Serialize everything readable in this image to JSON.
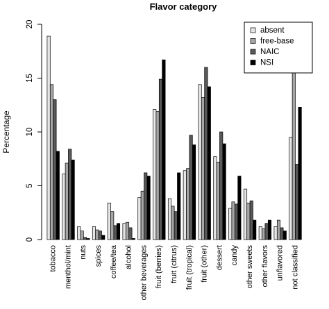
{
  "chart_data": {
    "type": "bar",
    "title": "Flavor category",
    "xlabel": "",
    "ylabel": "Percentage",
    "ylim": [
      0,
      20
    ],
    "yticks": [
      0,
      5,
      10,
      15,
      20
    ],
    "legend_position": "top-right",
    "grid": false,
    "categories": [
      "tobacco",
      "menthol/mint",
      "nuts",
      "spices",
      "coffee/tea",
      "alcohol",
      "other beverages",
      "fruit (berries)",
      "fruit (citrus)",
      "fruit (tropical)",
      "fruit (other)",
      "dessert",
      "candy",
      "other sweets",
      "other flavors",
      "unflavored",
      "not classified"
    ],
    "series": [
      {
        "name": "absent",
        "color": "#e6e6e6",
        "values": [
          18.9,
          6.1,
          1.2,
          1.2,
          3.4,
          1.5,
          3.9,
          12.1,
          3.8,
          6.4,
          14.4,
          7.7,
          2.9,
          4.7,
          1.2,
          1.2,
          9.5
        ]
      },
      {
        "name": "free-base",
        "color": "#a6a6a6",
        "values": [
          14.4,
          7.1,
          0.8,
          0.9,
          2.6,
          1.6,
          4.5,
          11.9,
          3.1,
          6.6,
          13.2,
          7.2,
          3.5,
          3.4,
          1.0,
          1.8,
          16.8
        ]
      },
      {
        "name": "NAIC",
        "color": "#595959",
        "values": [
          13.0,
          8.4,
          0.2,
          0.8,
          1.3,
          1.1,
          6.2,
          14.9,
          2.6,
          9.7,
          16.0,
          10.0,
          3.3,
          3.6,
          1.5,
          1.1,
          7.0
        ]
      },
      {
        "name": "NSI",
        "color": "#000000",
        "values": [
          8.2,
          7.4,
          0.1,
          0.4,
          1.5,
          0.1,
          5.9,
          16.7,
          6.2,
          8.8,
          14.2,
          8.9,
          5.9,
          1.8,
          1.8,
          0.8,
          12.3
        ]
      }
    ]
  }
}
